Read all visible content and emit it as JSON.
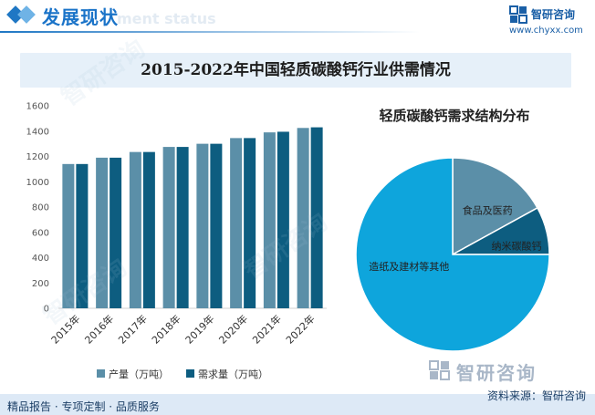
{
  "header": {
    "title": "发展现状",
    "ghost_text": "ment status",
    "logo_name": "智研咨询",
    "logo_url": "www.chyxx.com"
  },
  "banner": {
    "title": "2015-2022年中国轻质碳酸钙行业供需情况"
  },
  "colors": {
    "production": "#5b8fa8",
    "demand": "#0d5d80",
    "pie_food": "#5b8fa8",
    "pie_nano": "#0d5d80",
    "pie_paper": "#0ea5dc",
    "accent": "#1a73c8"
  },
  "chart_data": [
    {
      "type": "bar",
      "categories": [
        "2015年",
        "2016年",
        "2017年",
        "2018年",
        "2019年",
        "2020年",
        "2021年",
        "2022年"
      ],
      "series": [
        {
          "name": "产量（万吨）",
          "values": [
            1140,
            1190,
            1235,
            1275,
            1300,
            1345,
            1390,
            1425
          ]
        },
        {
          "name": "需求量（万吨）",
          "values": [
            1140,
            1190,
            1235,
            1275,
            1300,
            1345,
            1395,
            1430
          ]
        }
      ],
      "yticks": [
        0,
        200,
        400,
        600,
        800,
        1000,
        1200,
        1400,
        1600
      ],
      "ylim": [
        0,
        1600
      ],
      "legend_position": "bottom",
      "grid": false
    },
    {
      "type": "pie",
      "title": "轻质碳酸钙需求结构分布",
      "slices": [
        {
          "label": "食品及医药",
          "value": 17
        },
        {
          "label": "纳米碳酸钙",
          "value": 8
        },
        {
          "label": "造纸及建材等其他",
          "value": 75
        }
      ]
    }
  ],
  "footer": {
    "left": "精品报告 · 专项定制 · 品质服务",
    "right": "资料来源：智研咨询",
    "brand": "智研咨询"
  },
  "watermark": "智研咨询"
}
